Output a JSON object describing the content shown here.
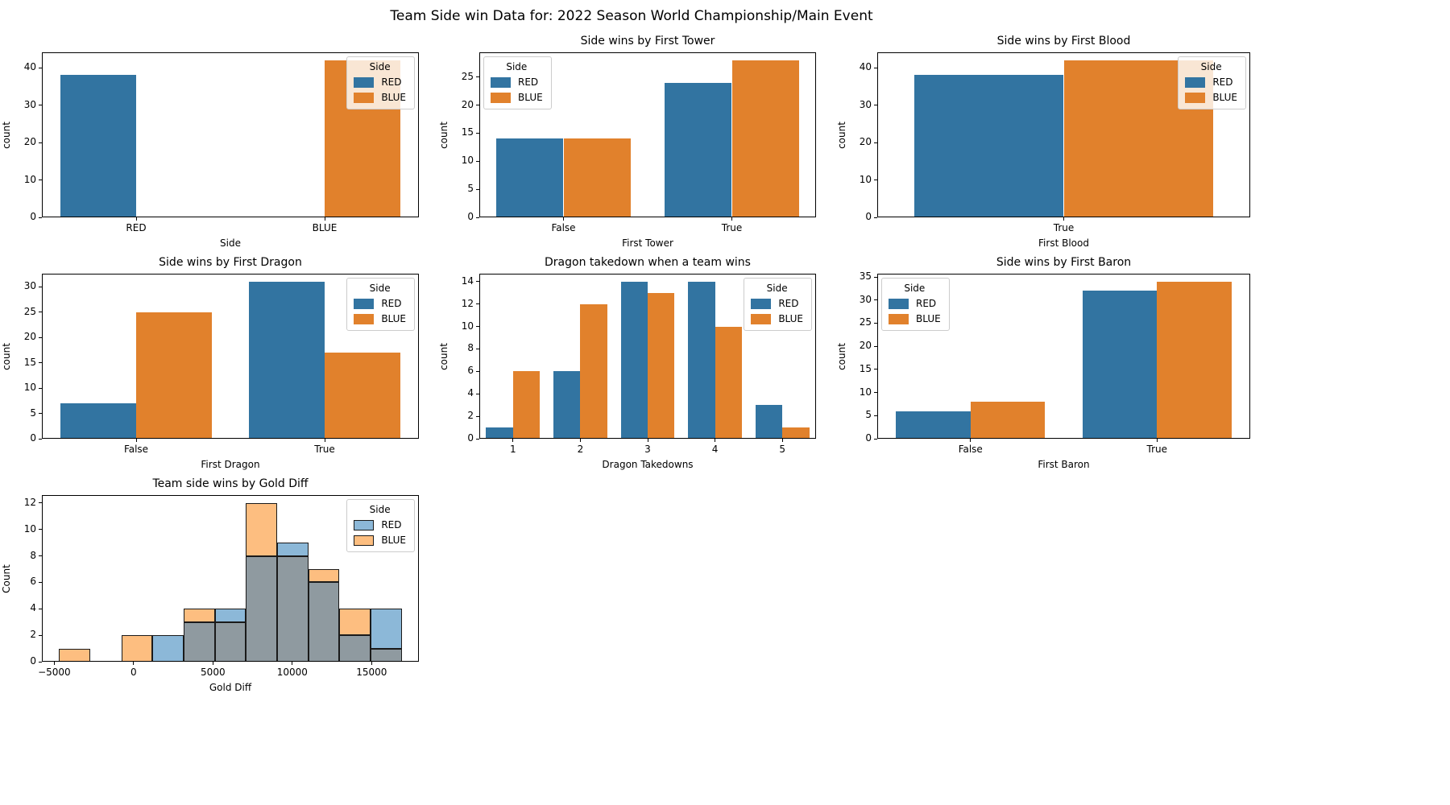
{
  "figure": {
    "suptitle": "Team Side win Data for: 2022 Season World Championship/Main Event",
    "background": "#ffffff",
    "legend_title": "Side",
    "legend_items": [
      "RED",
      "BLUE"
    ],
    "colors": {
      "red_side": "#3274a1",
      "blue_side": "#e1812c",
      "hist_red": "#8cb8d8",
      "hist_blue": "#fdbe80",
      "hist_overlap": "#8f9aa0",
      "edge": "#1a1a1a"
    }
  },
  "chart_data": [
    {
      "type": "bar",
      "title": "",
      "xlabel": "Side",
      "ylabel": "count",
      "categories": [
        "RED",
        "BLUE"
      ],
      "series": [
        {
          "name": "RED",
          "values": [
            38,
            null
          ]
        },
        {
          "name": "BLUE",
          "values": [
            null,
            42
          ]
        }
      ],
      "ylim": [
        0,
        44.1
      ],
      "yticks": [
        0,
        10,
        20,
        30,
        40
      ],
      "grid": false,
      "legend_pos": "top-right"
    },
    {
      "type": "bar",
      "title": "Side wins by First Tower",
      "xlabel": "First Tower",
      "ylabel": "count",
      "categories": [
        "False",
        "True"
      ],
      "series": [
        {
          "name": "RED",
          "values": [
            14,
            24
          ]
        },
        {
          "name": "BLUE",
          "values": [
            14,
            28
          ]
        }
      ],
      "ylim": [
        0,
        29.4
      ],
      "yticks": [
        0,
        5,
        10,
        15,
        20,
        25
      ],
      "grid": false,
      "legend_pos": "top-left"
    },
    {
      "type": "bar",
      "title": "Side wins by First Blood",
      "xlabel": "First Blood",
      "ylabel": "count",
      "categories": [
        "True"
      ],
      "series": [
        {
          "name": "RED",
          "values": [
            38
          ]
        },
        {
          "name": "BLUE",
          "values": [
            42
          ]
        }
      ],
      "ylim": [
        0,
        44.1
      ],
      "yticks": [
        0,
        10,
        20,
        30,
        40
      ],
      "grid": false,
      "legend_pos": "top-right"
    },
    {
      "type": "bar",
      "title": "Side wins by First Dragon",
      "xlabel": "First Dragon",
      "ylabel": "count",
      "categories": [
        "False",
        "True"
      ],
      "series": [
        {
          "name": "RED",
          "values": [
            7,
            31
          ]
        },
        {
          "name": "BLUE",
          "values": [
            25,
            17
          ]
        }
      ],
      "ylim": [
        0,
        32.55
      ],
      "yticks": [
        0,
        5,
        10,
        15,
        20,
        25,
        30
      ],
      "grid": false,
      "legend_pos": "top-right"
    },
    {
      "type": "bar",
      "title": "Dragon takedown when a team wins",
      "xlabel": "Dragon Takedowns",
      "ylabel": "count",
      "categories": [
        "1",
        "2",
        "3",
        "4",
        "5"
      ],
      "series": [
        {
          "name": "RED",
          "values": [
            1,
            6,
            14,
            14,
            3
          ]
        },
        {
          "name": "BLUE",
          "values": [
            6,
            12,
            13,
            10,
            1
          ]
        }
      ],
      "ylim": [
        0,
        14.7
      ],
      "yticks": [
        0,
        2,
        4,
        6,
        8,
        10,
        12,
        14
      ],
      "grid": false,
      "legend_pos": "top-right"
    },
    {
      "type": "bar",
      "title": "Side wins by First Baron",
      "xlabel": "First Baron",
      "ylabel": "count",
      "categories": [
        "False",
        "True"
      ],
      "series": [
        {
          "name": "RED",
          "values": [
            6,
            32
          ]
        },
        {
          "name": "BLUE",
          "values": [
            8,
            34
          ]
        }
      ],
      "ylim": [
        0,
        35.7
      ],
      "yticks": [
        0,
        5,
        10,
        15,
        20,
        25,
        30,
        35
      ],
      "grid": false,
      "legend_pos": "top-left"
    },
    {
      "type": "hist",
      "title": "Team side wins by Gold Diff",
      "xlabel": "Gold Diff",
      "ylabel": "Count",
      "xlim": [
        -5780,
        17980
      ],
      "xtick_values": [
        -5000,
        0,
        5000,
        10000,
        15000
      ],
      "xtick_labels": [
        "−5000",
        "0",
        "5000",
        "10000",
        "15000"
      ],
      "ylim": [
        0,
        12.6
      ],
      "yticks": [
        0,
        2,
        4,
        6,
        8,
        10,
        12
      ],
      "bin_edges": [
        -4700,
        -2736,
        -773,
        1191,
        3155,
        5118,
        7082,
        9045,
        11009,
        12973,
        14936,
        16900
      ],
      "series": [
        {
          "name": "RED",
          "values": [
            0,
            0,
            0,
            2,
            3,
            4,
            8,
            9,
            6,
            2,
            4
          ]
        },
        {
          "name": "BLUE",
          "values": [
            1,
            0,
            2,
            0,
            4,
            3,
            12,
            8,
            7,
            4,
            1
          ]
        }
      ],
      "grid": false,
      "legend_pos": "top-right"
    }
  ]
}
